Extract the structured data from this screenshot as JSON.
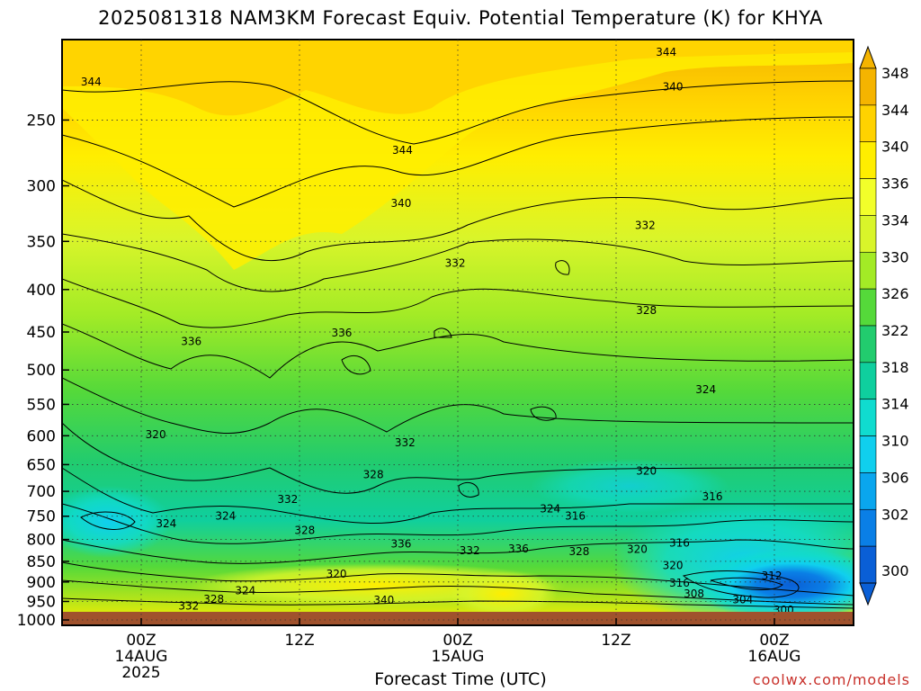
{
  "title": "2025081318 NAM3KM Forecast Equiv. Potential Temperature (K) for KHYA",
  "x_axis_title": "Forecast Time (UTC)",
  "credit": "coolwx.com/models",
  "colors": {
    "ground": "#a0522d",
    "contour_line": "#000000",
    "grid": "#333333",
    "credit": "#c8302a"
  },
  "chart_data": {
    "type": "heatmap",
    "title": "2025081318 NAM3KM Forecast Equiv. Potential Temperature (K) for KHYA",
    "xlabel": "Forecast Time (UTC)",
    "ylabel": "",
    "y_axis": {
      "ticks": [
        250,
        300,
        350,
        400,
        450,
        500,
        550,
        600,
        650,
        700,
        750,
        800,
        850,
        900,
        950,
        1000
      ],
      "ylim": [
        1015,
        200
      ],
      "scale": "log"
    },
    "x_axis": {
      "ticks": [
        {
          "line1": "00Z",
          "line2": "14AUG",
          "line3": "2025",
          "hours": 6
        },
        {
          "line1": "12Z",
          "line2": "",
          "line3": "",
          "hours": 18
        },
        {
          "line1": "00Z",
          "line2": "15AUG",
          "line3": "",
          "hours": 30
        },
        {
          "line1": "12Z",
          "line2": "",
          "line3": "",
          "hours": 42
        },
        {
          "line1": "00Z",
          "line2": "16AUG",
          "line3": "",
          "hours": 54
        }
      ],
      "xlim": [
        0,
        60
      ]
    },
    "colorbar": {
      "ticks": [
        348,
        344,
        340,
        336,
        334,
        330,
        326,
        322,
        318,
        314,
        310,
        306,
        302,
        300
      ],
      "colors": [
        "#f5b400",
        "#ffd200",
        "#ffee00",
        "#f2ff2a",
        "#d9f52a",
        "#a3eb26",
        "#55d93a",
        "#22cc6e",
        "#0fcf9e",
        "#10dccf",
        "#10cfee",
        "#0aa6ee",
        "#0a7fe6",
        "#0a5fd6"
      ],
      "orientation": "vertical",
      "extend": "both"
    },
    "grid": true,
    "contour_labels": [
      {
        "text": "344",
        "t": 2.2,
        "p": 225
      },
      {
        "text": "344",
        "t": 25.8,
        "p": 272
      },
      {
        "text": "344",
        "t": 45.8,
        "p": 207
      },
      {
        "text": "340",
        "t": 25.7,
        "p": 315
      },
      {
        "text": "340",
        "t": 46.3,
        "p": 228
      },
      {
        "text": "336",
        "t": 9.8,
        "p": 462
      },
      {
        "text": "336",
        "t": 21.2,
        "p": 451
      },
      {
        "text": "332",
        "t": 29.8,
        "p": 372
      },
      {
        "text": "332",
        "t": 44.2,
        "p": 335
      },
      {
        "text": "328",
        "t": 44.3,
        "p": 424
      },
      {
        "text": "324",
        "t": 48.8,
        "p": 528
      },
      {
        "text": "320",
        "t": 7.1,
        "p": 598
      },
      {
        "text": "320",
        "t": 44.3,
        "p": 662
      },
      {
        "text": "316",
        "t": 49.3,
        "p": 710
      },
      {
        "text": "332",
        "t": 26.0,
        "p": 612
      },
      {
        "text": "328",
        "t": 23.6,
        "p": 668
      },
      {
        "text": "332",
        "t": 17.1,
        "p": 716
      },
      {
        "text": "324",
        "t": 12.4,
        "p": 750
      },
      {
        "text": "324",
        "t": 7.9,
        "p": 766
      },
      {
        "text": "328",
        "t": 18.4,
        "p": 780
      },
      {
        "text": "336",
        "t": 25.7,
        "p": 810
      },
      {
        "text": "332",
        "t": 30.9,
        "p": 825
      },
      {
        "text": "336",
        "t": 34.6,
        "p": 821
      },
      {
        "text": "324",
        "t": 37.0,
        "p": 735
      },
      {
        "text": "316",
        "t": 38.9,
        "p": 750
      },
      {
        "text": "328",
        "t": 39.2,
        "p": 827
      },
      {
        "text": "320",
        "t": 43.6,
        "p": 822
      },
      {
        "text": "316",
        "t": 46.8,
        "p": 808
      },
      {
        "text": "320",
        "t": 46.3,
        "p": 860
      },
      {
        "text": "320",
        "t": 20.8,
        "p": 880
      },
      {
        "text": "312",
        "t": 53.8,
        "p": 885
      },
      {
        "text": "316",
        "t": 46.8,
        "p": 903
      },
      {
        "text": "308",
        "t": 47.9,
        "p": 930
      },
      {
        "text": "304",
        "t": 51.6,
        "p": 945
      },
      {
        "text": "300",
        "t": 54.7,
        "p": 973
      },
      {
        "text": "324",
        "t": 13.9,
        "p": 922
      },
      {
        "text": "328",
        "t": 11.5,
        "p": 944
      },
      {
        "text": "332",
        "t": 9.6,
        "p": 962
      },
      {
        "text": "340",
        "t": 24.4,
        "p": 947
      }
    ]
  }
}
